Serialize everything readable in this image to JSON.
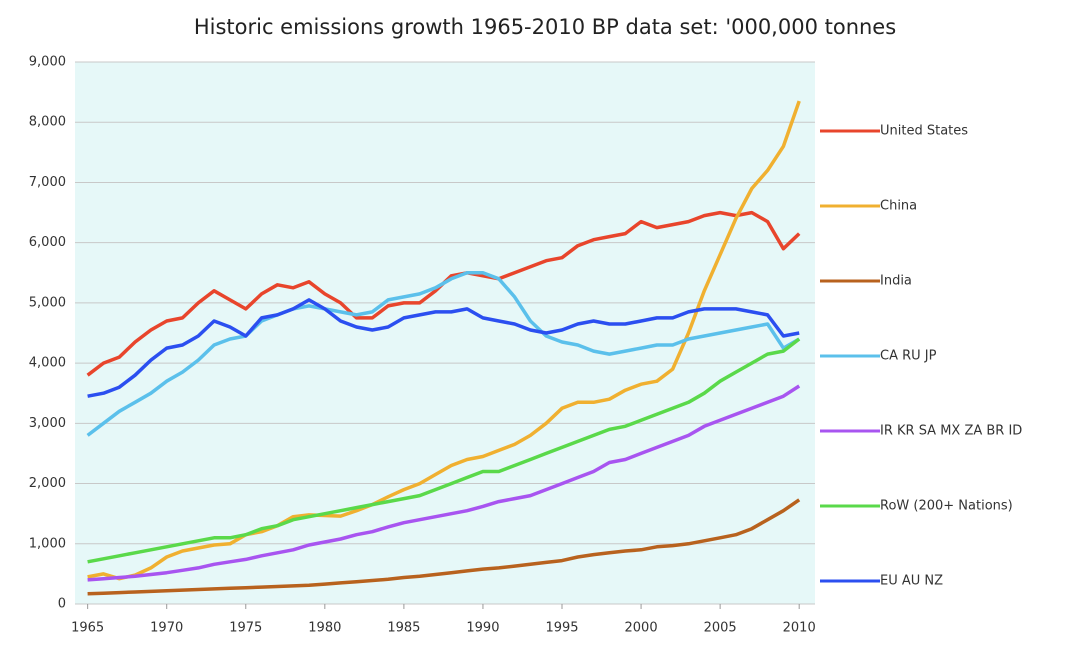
{
  "chart_data": {
    "type": "line",
    "title": "Historic emissions growth 1965-2010    BP data set:  '000,000 tonnes",
    "x": [
      1965,
      1966,
      1967,
      1968,
      1969,
      1970,
      1971,
      1972,
      1973,
      1974,
      1975,
      1976,
      1977,
      1978,
      1979,
      1980,
      1981,
      1982,
      1983,
      1984,
      1985,
      1986,
      1987,
      1988,
      1989,
      1990,
      1991,
      1992,
      1993,
      1994,
      1995,
      1996,
      1997,
      1998,
      1999,
      2000,
      2001,
      2002,
      2003,
      2004,
      2005,
      2006,
      2007,
      2008,
      2009,
      2010
    ],
    "series": [
      {
        "name": "United States",
        "color": "#e8452c",
        "values": [
          3800,
          4000,
          4100,
          4350,
          4550,
          4700,
          4750,
          5000,
          5200,
          5050,
          4900,
          5150,
          5300,
          5250,
          5350,
          5150,
          5000,
          4750,
          4750,
          4950,
          5000,
          5000,
          5200,
          5450,
          5500,
          5450,
          5400,
          5500,
          5600,
          5700,
          5750,
          5950,
          6050,
          6100,
          6150,
          6350,
          6250,
          6300,
          6350,
          6450,
          6500,
          6450,
          6500,
          6350,
          5900,
          6150
        ]
      },
      {
        "name": "China",
        "color": "#f0b030",
        "values": [
          450,
          500,
          420,
          480,
          600,
          780,
          880,
          930,
          980,
          1000,
          1150,
          1200,
          1300,
          1450,
          1480,
          1470,
          1460,
          1550,
          1650,
          1780,
          1900,
          2000,
          2150,
          2300,
          2400,
          2450,
          2550,
          2650,
          2800,
          3000,
          3250,
          3350,
          3350,
          3400,
          3550,
          3650,
          3700,
          3900,
          4500,
          5200,
          5800,
          6400,
          6900,
          7200,
          7600,
          8350
        ]
      },
      {
        "name": "India",
        "color": "#b8621e",
        "values": [
          170,
          180,
          190,
          200,
          210,
          220,
          230,
          240,
          250,
          260,
          270,
          280,
          290,
          300,
          310,
          330,
          350,
          370,
          390,
          410,
          440,
          460,
          490,
          520,
          550,
          580,
          600,
          630,
          660,
          690,
          720,
          780,
          820,
          850,
          880,
          900,
          950,
          970,
          1000,
          1050,
          1100,
          1150,
          1250,
          1400,
          1550,
          1730
        ]
      },
      {
        "name": "CA  RU  JP",
        "color": "#5bc0eb",
        "values": [
          2800,
          3000,
          3200,
          3350,
          3500,
          3700,
          3850,
          4050,
          4300,
          4400,
          4450,
          4700,
          4800,
          4900,
          4950,
          4900,
          4850,
          4800,
          4850,
          5050,
          5100,
          5150,
          5250,
          5400,
          5500,
          5500,
          5400,
          5100,
          4700,
          4450,
          4350,
          4300,
          4200,
          4150,
          4200,
          4250,
          4300,
          4300,
          4400,
          4450,
          4500,
          4550,
          4600,
          4650,
          4250,
          4400
        ]
      },
      {
        "name": "IR KR SA MX ZA BR ID",
        "color": "#a855f0",
        "values": [
          400,
          420,
          440,
          460,
          490,
          520,
          560,
          600,
          660,
          700,
          740,
          800,
          850,
          900,
          980,
          1030,
          1080,
          1150,
          1200,
          1280,
          1350,
          1400,
          1450,
          1500,
          1550,
          1620,
          1700,
          1750,
          1800,
          1900,
          2000,
          2100,
          2200,
          2350,
          2400,
          2500,
          2600,
          2700,
          2800,
          2950,
          3050,
          3150,
          3250,
          3350,
          3450,
          3620
        ]
      },
      {
        "name": "RoW  (200+ Nations)",
        "color": "#5ad94a",
        "values": [
          700,
          750,
          800,
          850,
          900,
          950,
          1000,
          1050,
          1100,
          1100,
          1150,
          1250,
          1300,
          1400,
          1450,
          1500,
          1550,
          1600,
          1650,
          1700,
          1750,
          1800,
          1900,
          2000,
          2100,
          2200,
          2200,
          2300,
          2400,
          2500,
          2600,
          2700,
          2800,
          2900,
          2950,
          3050,
          3150,
          3250,
          3350,
          3500,
          3700,
          3850,
          4000,
          4150,
          4200,
          4400
        ]
      },
      {
        "name": "EU  AU  NZ",
        "color": "#2b4ff0",
        "values": [
          3450,
          3500,
          3600,
          3800,
          4050,
          4250,
          4300,
          4450,
          4700,
          4600,
          4450,
          4750,
          4800,
          4900,
          5050,
          4900,
          4700,
          4600,
          4550,
          4600,
          4750,
          4800,
          4850,
          4850,
          4900,
          4750,
          4700,
          4650,
          4550,
          4500,
          4550,
          4650,
          4700,
          4650,
          4650,
          4700,
          4750,
          4750,
          4850,
          4900,
          4900,
          4900,
          4850,
          4800,
          4450,
          4500
        ]
      }
    ],
    "xlim": [
      1964.2,
      2011
    ],
    "xticks": [
      1965,
      1970,
      1975,
      1980,
      1985,
      1990,
      1995,
      2000,
      2005,
      2010
    ],
    "ylim": [
      0,
      9000
    ],
    "yticks": [
      0,
      {
        "value": 1000,
        "label": "1,000"
      },
      {
        "value": 2000,
        "label": "2,000"
      },
      {
        "value": 3000,
        "label": "3,000"
      },
      {
        "value": 4000,
        "label": "4,000"
      },
      {
        "value": 5000,
        "label": "5,000"
      },
      {
        "value": 6000,
        "label": "6,000"
      },
      {
        "value": 7000,
        "label": "7,000"
      },
      {
        "value": 8000,
        "label": "8,000"
      },
      {
        "value": 9000,
        "label": "9,000"
      }
    ],
    "grid": true,
    "legend": "right"
  }
}
